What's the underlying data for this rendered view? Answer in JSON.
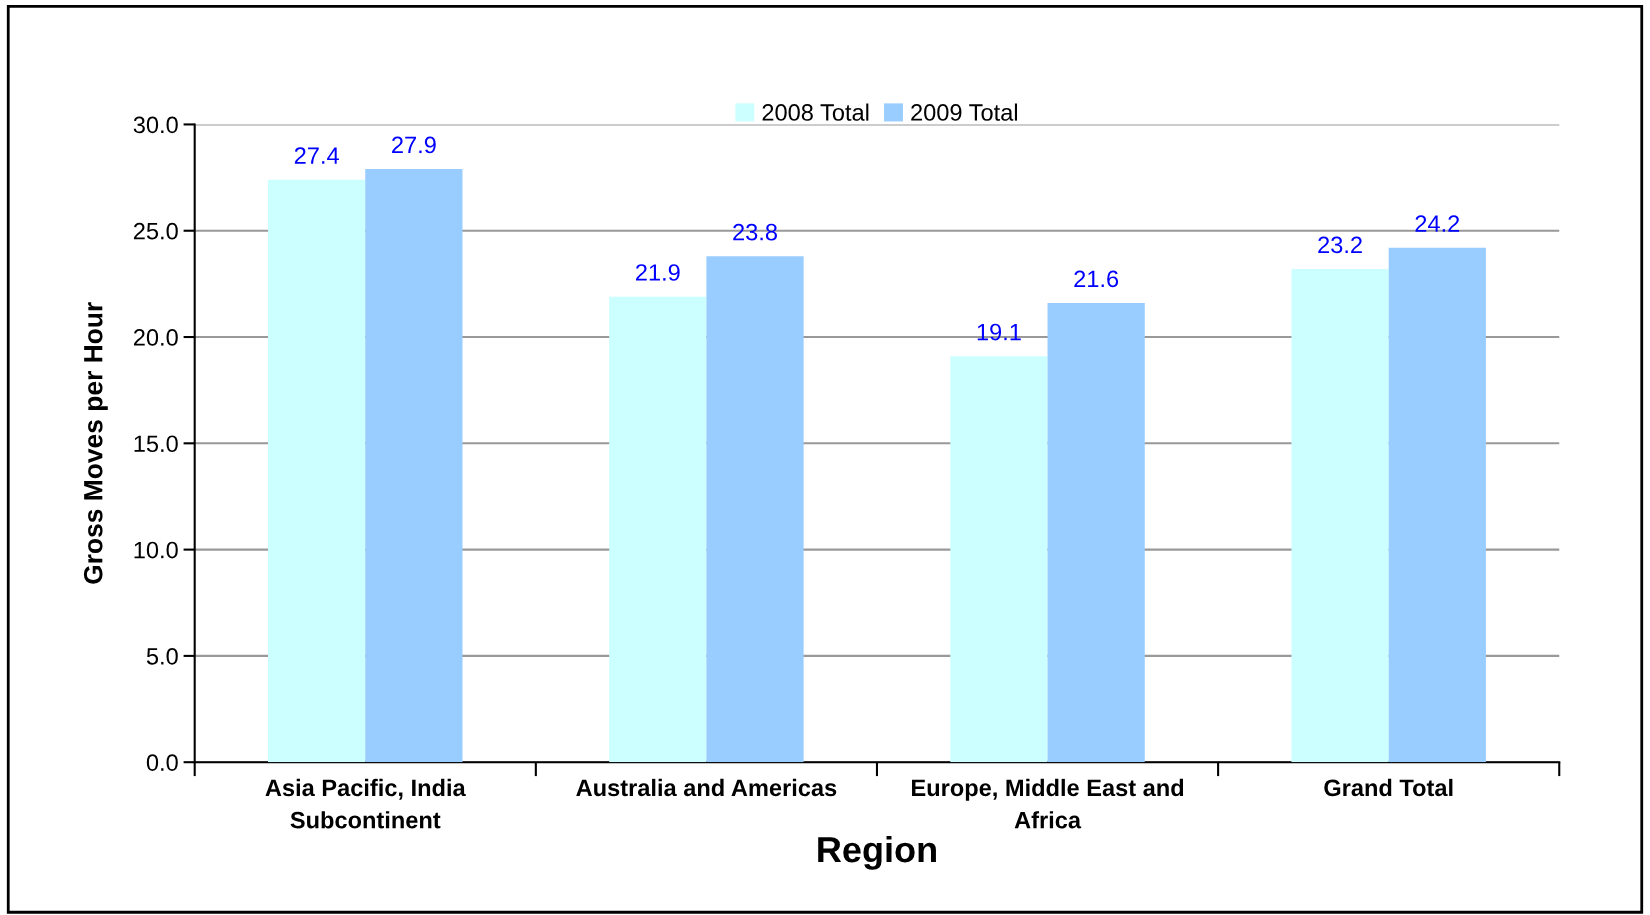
{
  "chart_data": {
    "type": "bar",
    "xlabel": "Region",
    "ylabel": "Gross Moves per Hour",
    "categories": [
      "Asia Pacific, India Subcontinent",
      "Australia and Americas",
      "Europe, Middle East and Africa",
      "Grand Total"
    ],
    "series": [
      {
        "name": "2008 Total",
        "color": "#ccffff",
        "values": [
          27.4,
          21.9,
          19.1,
          23.2
        ]
      },
      {
        "name": "2009 Total",
        "color": "#99ccff",
        "values": [
          27.9,
          23.8,
          21.6,
          24.2
        ]
      }
    ],
    "ylim": [
      0,
      30
    ],
    "yticks": [
      {
        "value": 0,
        "label": "0.0"
      },
      {
        "value": 5,
        "label": "5.0"
      },
      {
        "value": 10,
        "label": "10.0"
      },
      {
        "value": 15,
        "label": "15.0"
      },
      {
        "value": 20,
        "label": "20.0"
      },
      {
        "value": 25,
        "label": "25.0"
      },
      {
        "value": 30,
        "label": "30.0"
      }
    ],
    "grid": "y",
    "legend": "top",
    "data_labels": true
  }
}
